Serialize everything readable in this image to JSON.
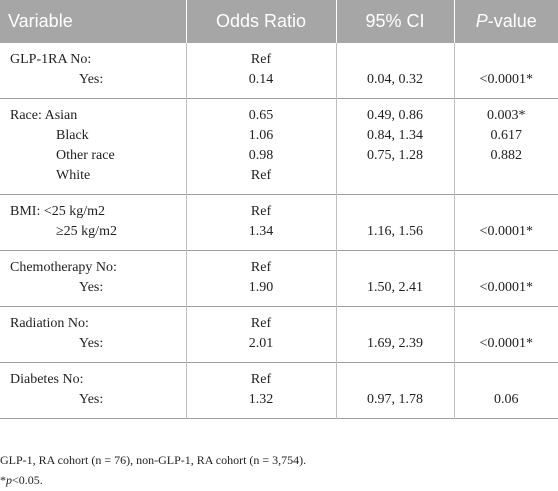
{
  "table": {
    "headers": {
      "variable": "Variable",
      "odds_ratio": "Odds Ratio",
      "ci": "95% CI",
      "p_prefix": "P",
      "p_suffix": "-value"
    },
    "rows": [
      {
        "variable": [
          "GLP-1RA No:",
          "Yes:"
        ],
        "odds_ratio": [
          "Ref",
          "0.14"
        ],
        "ci": [
          "",
          "0.04, 0.32"
        ],
        "p": [
          "",
          "<0.0001*"
        ]
      },
      {
        "variable": [
          "Race: Asian",
          "Black",
          "Other race",
          "White"
        ],
        "odds_ratio": [
          "0.65",
          "1.06",
          "0.98",
          "Ref"
        ],
        "ci": [
          "0.49, 0.86",
          "0.84, 1.34",
          "0.75, 1.28",
          ""
        ],
        "p": [
          "0.003*",
          "0.617",
          "0.882",
          ""
        ]
      },
      {
        "variable": [
          "BMI: <25 kg/m2",
          "≥25 kg/m2"
        ],
        "odds_ratio": [
          "Ref",
          "1.34"
        ],
        "ci": [
          "",
          "1.16, 1.56"
        ],
        "p": [
          "",
          "<0.0001*"
        ]
      },
      {
        "variable": [
          "Chemotherapy No:",
          "Yes:"
        ],
        "odds_ratio": [
          "Ref",
          "1.90"
        ],
        "ci": [
          "",
          "1.50, 2.41"
        ],
        "p": [
          "",
          "<0.0001*"
        ]
      },
      {
        "variable": [
          "Radiation No:",
          "Yes:"
        ],
        "odds_ratio": [
          "Ref",
          "2.01"
        ],
        "ci": [
          "",
          "1.69, 2.39"
        ],
        "p": [
          "",
          "<0.0001*"
        ]
      },
      {
        "variable": [
          "Diabetes No:",
          "Yes:"
        ],
        "odds_ratio": [
          "Ref",
          "1.32"
        ],
        "ci": [
          "",
          "0.97, 1.78"
        ],
        "p": [
          "",
          "0.06"
        ]
      }
    ]
  },
  "footnotes": {
    "cohort": "GLP-1, RA cohort (n = 76), non-GLP-1, RA cohort (n = 3,754).",
    "sig_prefix": "*",
    "sig_italic": "p",
    "sig_suffix": "<0.05."
  }
}
